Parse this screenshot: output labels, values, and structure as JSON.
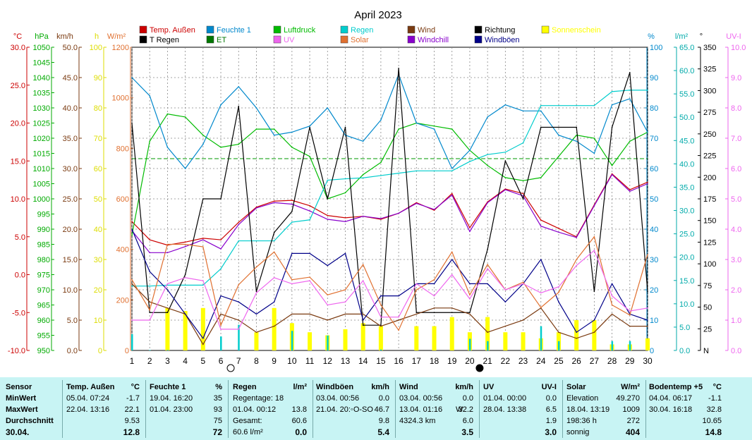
{
  "chart_data": {
    "type": "line",
    "title": "April 2023",
    "x": [
      1,
      2,
      3,
      4,
      5,
      6,
      7,
      8,
      9,
      10,
      11,
      12,
      13,
      14,
      15,
      16,
      17,
      18,
      19,
      20,
      21,
      22,
      23,
      24,
      25,
      26,
      27,
      28,
      29,
      30
    ],
    "axis_units": [
      "°C",
      "hPa",
      "km/h",
      "h",
      "W/m²",
      "%",
      "l/m²",
      "°",
      "UV-I"
    ],
    "axes": {
      "temp_c": {
        "unit": "°C",
        "min": -10,
        "max": 30,
        "ticks": [
          "30.0",
          "25.0",
          "20.0",
          "15.0",
          "10.0",
          "5.0",
          "0.0",
          "-5.0",
          "-10.0"
        ],
        "color": "#cc0000"
      },
      "pressure_hpa": {
        "unit": "hPa",
        "min": 950,
        "max": 1050,
        "ticks": [
          "1050",
          "1045",
          "1040",
          "1035",
          "1030",
          "1025",
          "1020",
          "1015",
          "1010",
          "1005",
          "1000",
          "995",
          "990",
          "985",
          "980",
          "975",
          "970",
          "965",
          "960",
          "955",
          "950"
        ],
        "color": "#00aa00"
      },
      "wind_kmh": {
        "unit": "km/h",
        "min": 0,
        "max": 50,
        "ticks": [
          "50.0",
          "45.0",
          "40.0",
          "35.0",
          "30.0",
          "25.0",
          "20.0",
          "15.0",
          "10.0",
          "5.0",
          "0.0"
        ],
        "color": "#7a3a10"
      },
      "sun_h": {
        "unit": "h",
        "min": 0,
        "max": 100,
        "ticks": [
          "100",
          "90",
          "80",
          "70",
          "60",
          "50",
          "40",
          "30",
          "20",
          "10",
          "0"
        ],
        "color": "#dddd00"
      },
      "solar_wm2": {
        "unit": "W/m²",
        "min": 0,
        "max": 1200,
        "ticks": [
          "1200",
          "1000",
          "800",
          "600",
          "400",
          "200",
          "0"
        ],
        "color": "#e07030"
      },
      "humidity_pct": {
        "unit": "%",
        "min": 0,
        "max": 100,
        "ticks": [
          "100",
          "90",
          "80",
          "70",
          "60",
          "50",
          "40",
          "30",
          "20",
          "10",
          "0"
        ],
        "color": "#0088cc"
      },
      "rain_lm2": {
        "unit": "l/m²",
        "min": 0,
        "max": 65,
        "ticks": [
          "65.0",
          "60.0",
          "55.0",
          "50.0",
          "45.0",
          "40.0",
          "35.0",
          "30.0",
          "25.0",
          "20.0",
          "15.0",
          "10.0",
          "5.0",
          "0.0"
        ],
        "color": "#00aaaa"
      },
      "direction_deg": {
        "unit": "°",
        "min": 0,
        "max": 360,
        "ticks": [
          "350",
          "325",
          "300",
          "275",
          "250",
          "225",
          "200",
          "175",
          "150",
          "125",
          "100",
          "75",
          "50",
          "25",
          "N"
        ],
        "color": "#000000"
      },
      "uv_index": {
        "unit": "UV-I",
        "min": 0,
        "max": 10,
        "ticks": [
          "10.0",
          "9.0",
          "8.0",
          "7.0",
          "6.0",
          "5.0",
          "4.0",
          "3.0",
          "2.0",
          "1.0",
          "0.0"
        ],
        "color": "#ee66ee"
      }
    },
    "legend": [
      {
        "name": "Temp. Außen",
        "color": "#cc0000"
      },
      {
        "name": "T Regen",
        "color": "#000000"
      },
      {
        "name": "Feuchte 1",
        "color": "#0088cc"
      },
      {
        "name": "ET",
        "color": "#007700"
      },
      {
        "name": "Luftdruck",
        "color": "#00bb00"
      },
      {
        "name": "UV",
        "color": "#ee66ee"
      },
      {
        "name": "Regen",
        "color": "#00cccc"
      },
      {
        "name": "Solar",
        "color": "#e07030"
      },
      {
        "name": "Wind",
        "color": "#7a3a10"
      },
      {
        "name": "Windchill",
        "color": "#8800cc"
      },
      {
        "name": "Richtung",
        "color": "#000000"
      },
      {
        "name": "Windböen",
        "color": "#000088"
      },
      {
        "name": "Sonnenschein",
        "color": "#ffff00"
      }
    ],
    "series": [
      {
        "name": "Temp. Außen",
        "axis": "temp_c",
        "color": "#cc0000",
        "values": [
          7,
          4.6,
          3.9,
          4.3,
          4.8,
          4.6,
          6.9,
          8.9,
          9.7,
          9.8,
          9.1,
          7.8,
          7.5,
          7.7,
          7.3,
          8.1,
          9.5,
          8.5,
          10.7,
          6.2,
          9.6,
          11.3,
          10.7,
          7.2,
          6.1,
          5.0,
          9.2,
          13.3,
          11.2,
          12.2
        ]
      },
      {
        "name": "Windchill",
        "axis": "temp_c",
        "color": "#8800cc",
        "values": [
          5.8,
          2.9,
          2.9,
          3.7,
          4.6,
          3.4,
          6.6,
          8.8,
          9.5,
          9.3,
          8.4,
          7.3,
          7,
          7.7,
          7.4,
          8.1,
          9.4,
          8.6,
          10.5,
          5.7,
          9.5,
          11.2,
          10.4,
          6.4,
          5.6,
          4.9,
          9.1,
          13.2,
          11.0,
          12.0
        ]
      },
      {
        "name": "Luftdruck",
        "axis": "pressure_hpa",
        "color": "#00bb00",
        "values": [
          988,
          1019,
          1028,
          1027,
          1021,
          1017,
          1018,
          1023,
          1023,
          1017,
          1014,
          1000,
          1002,
          1008,
          1012,
          1023,
          1025,
          1024,
          1023,
          1016,
          1011,
          1007,
          1006,
          1007,
          1014,
          1021,
          1020,
          1011,
          1019,
          1022
        ]
      },
      {
        "name": "Feuchte 1",
        "axis": "humidity_pct",
        "color": "#0088cc",
        "values": [
          90,
          84,
          67,
          60,
          68,
          81,
          87,
          80,
          71,
          72,
          74,
          80,
          71,
          69,
          76,
          91,
          75,
          73,
          60,
          66,
          77,
          81,
          79,
          79,
          71,
          69,
          65,
          81,
          83,
          72
        ]
      },
      {
        "name": "Regen",
        "axis": "rain_lm2",
        "color": "#00cccc",
        "values": [
          13.8,
          13.8,
          14.0,
          14.0,
          14.0,
          17.5,
          23.5,
          23.5,
          23.5,
          27.5,
          28.0,
          36.5,
          36.8,
          37.0,
          37.5,
          38.0,
          38.5,
          38.5,
          38.5,
          40.5,
          42.0,
          42.5,
          44.5,
          52.5,
          52.5,
          52.5,
          52.5,
          55.5,
          55.8,
          55.8
        ]
      },
      {
        "name": "Richtung",
        "axis": "direction_deg",
        "color": "#000000",
        "values": [
          270,
          45,
          45,
          90,
          180,
          180,
          290,
          70,
          140,
          165,
          265,
          180,
          265,
          30,
          30,
          335,
          45,
          45,
          45,
          45,
          120,
          225,
          180,
          265,
          265,
          265,
          70,
          265,
          330,
          70
        ]
      },
      {
        "name": "Wind",
        "axis": "wind_kmh",
        "color": "#7a3a10",
        "values": [
          11,
          8,
          7,
          6,
          1,
          6,
          5,
          3,
          4,
          6,
          6,
          5,
          6,
          6,
          4,
          5,
          6,
          7,
          7,
          6,
          3,
          4,
          5,
          7,
          3,
          2,
          3,
          6,
          4,
          4
        ]
      },
      {
        "name": "Windböen",
        "axis": "wind_kmh",
        "color": "#000088",
        "values": [
          20,
          13,
          10,
          6,
          2,
          9,
          8,
          6,
          8,
          16,
          16,
          14,
          16,
          5,
          9,
          9,
          11,
          11,
          15,
          11,
          11,
          8,
          11,
          15,
          8,
          3,
          5,
          11,
          6,
          5
        ]
      },
      {
        "name": "Solar",
        "axis": "solar_wm2",
        "color": "#e07030",
        "values": [
          280,
          160,
          420,
          420,
          410,
          100,
          260,
          330,
          390,
          280,
          290,
          220,
          240,
          340,
          180,
          80,
          240,
          280,
          390,
          220,
          340,
          240,
          270,
          170,
          230,
          360,
          450,
          180,
          140,
          380
        ]
      },
      {
        "name": "UV",
        "axis": "uv_index",
        "color": "#ee66ee",
        "values": [
          1.0,
          1.0,
          2.2,
          2.4,
          2.3,
          0.7,
          0.7,
          1.9,
          2.4,
          2.2,
          2.3,
          1.5,
          1.6,
          2.3,
          1.1,
          1.1,
          2.2,
          1.8,
          2.5,
          1.7,
          2.7,
          2.0,
          2.2,
          1.9,
          2.1,
          2.8,
          3.3,
          1.8,
          1.3,
          1.4
        ]
      }
    ],
    "bars": [
      {
        "name": "Sonnenschein",
        "axis": "sun_h",
        "color": "#ffff00",
        "values": [
          0,
          0,
          14,
          13,
          14,
          0,
          0,
          6,
          14,
          9,
          6,
          5,
          7,
          9,
          8,
          0,
          8,
          8,
          11,
          6,
          11,
          6,
          6,
          4,
          6,
          10,
          10,
          2,
          2,
          4
        ]
      },
      {
        "name": "Regen",
        "axis": "rain_lm2",
        "color": "#00cccc",
        "values": [
          3.5,
          0.1,
          0.1,
          0,
          0,
          3.0,
          5.5,
          0,
          0,
          4.2,
          0,
          3.2,
          0,
          0,
          0.2,
          0,
          0,
          0,
          0,
          2.5,
          2.0,
          0,
          0,
          5.2,
          2.0,
          0,
          0,
          2.0,
          2.0,
          0
        ]
      }
    ],
    "moon_markers": [
      {
        "x": 6,
        "phase": "full"
      },
      {
        "x": 20,
        "phase": "new"
      }
    ]
  },
  "stats": {
    "sensor": {
      "header": "Sensor",
      "rows": [
        "MinWert",
        "MaxWert",
        "Durchschnitt",
        "30.04."
      ]
    },
    "temp": {
      "header": "Temp. Außen",
      "unit": "°C",
      "min_date": "05.04.  07:24",
      "min_val": "-1.7",
      "max_date": "22.04.  13:16",
      "max_val": "22.1",
      "avg": "9.53",
      "current": "12.8"
    },
    "humidity": {
      "header": "Feuchte 1",
      "unit": "%",
      "min_date": "19.04.  16:20",
      "min_val": "35",
      "max_date": "01.04.  23:00",
      "max_val": "93",
      "avg": "75",
      "current": "72"
    },
    "rain": {
      "header": "Regen",
      "unit": "l/m²",
      "min_label": "Regentage: 18",
      "max_date": "01.04.  00:12",
      "max_val": "13.8",
      "total_label": "Gesamt:",
      "total_val": "60.6",
      "current_label": "60.6 l/m²",
      "current": "0.0"
    },
    "gust": {
      "header": "Windböen",
      "unit": "km/h",
      "min_date": "03.04.  00:56",
      "min_val": "0.0",
      "max_date": "21.04.  20:◦O-SO",
      "max_val": "46.7",
      "avg": "9.8",
      "current": "5.4"
    },
    "wind": {
      "header": "Wind",
      "unit": "km/h",
      "min_date": "03.04.  00:56",
      "min_val": "0.0",
      "max_date": "13.04.  01:16",
      "max_dir": "W",
      "max_val": "32.2",
      "dist": "4324.3 km",
      "avg": "6.0",
      "current": "3.5"
    },
    "uv": {
      "header": "UV",
      "unit": "UV-I",
      "min_date": "01.04.  00:00",
      "min_val": "0.0",
      "max_date": "28.04.  13:38",
      "max_val": "6.5",
      "avg": "1.9",
      "current": "3.0"
    },
    "solar": {
      "header": "Solar",
      "unit": "W/m²",
      "min_label": "Elevation",
      "min_val": "49.270",
      "max_date": "18.04.  13:19",
      "max_val": "1009",
      "hours": "198:36 h",
      "avg": "272",
      "current_label": "sonnig",
      "current": "404"
    },
    "soil": {
      "header": "Bodentemp +5",
      "unit": "°C",
      "min_date": "04.04.  06:17",
      "min_val": "-1.1",
      "max_date": "30.04.  16:18",
      "max_val": "32.8",
      "avg": "10.65",
      "current": "14.8"
    }
  }
}
